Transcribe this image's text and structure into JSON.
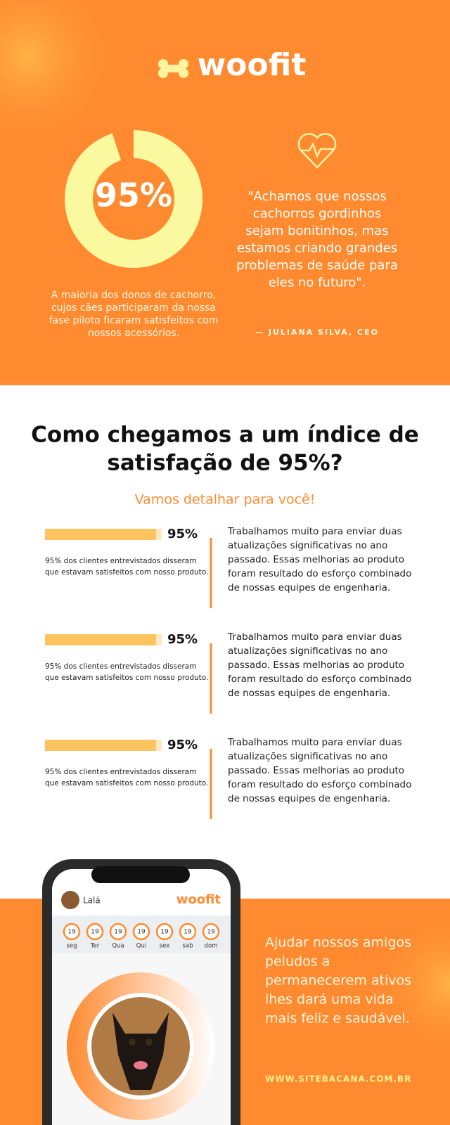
{
  "header": {
    "logo": "woofit"
  },
  "stat": {
    "value": 95,
    "label": "95%",
    "caption": [
      "A maioria dos donos de cachorro,",
      "cujos cães participaram da nossa",
      "fase piloto ficaram satisfeitos com",
      "nossos acessórios."
    ]
  },
  "quote": {
    "lines": [
      "\"Achamos que nossos",
      "cachorros gordinhos",
      "sejam bonitinhos, mas",
      "estamos criando grandes",
      "problemas de saúde para",
      "eles no futuro\"."
    ],
    "author": "— JULIANA SILVA, CEO"
  },
  "section": {
    "title": [
      "Como chegamos a um índice de",
      "satisfação de 95%?"
    ],
    "subtitle": "Vamos detalhar para você!"
  },
  "items": [
    {
      "value": 95,
      "label": "95%",
      "note": [
        "95% dos clientes entrevistados disseram",
        "que estavam satisfeitos com nosso produto."
      ],
      "text": [
        "Trabalhamos muito para enviar duas",
        "atualizações significativas no ano",
        "passado. Essas melhorias ao produto",
        "foram resultado do esforço combinado",
        "de nossas equipes de engenharia."
      ]
    },
    {
      "value": 95,
      "label": "95%",
      "note": [
        "95% dos clientes entrevistados disseram",
        "que estavam satisfeitos com nosso produto."
      ],
      "text": [
        "Trabalhamos muito para enviar duas",
        "atualizações significativas no ano",
        "passado. Essas melhorias ao produto",
        "foram resultado do esforço combinado",
        "de nossas equipes de engenharia."
      ]
    },
    {
      "value": 95,
      "label": "95%",
      "note": [
        "95% dos clientes entrevistados disseram",
        "que estavam satisfeitos com nosso produto."
      ],
      "text": [
        "Trabalhamos muito para enviar duas",
        "atualizações significativas no ano",
        "passado. Essas melhorias ao produto",
        "foram resultado do esforço combinado",
        "de nossas equipes de engenharia."
      ]
    }
  ],
  "app": {
    "user": "Lalá",
    "logo": "woofit",
    "days": [
      {
        "date": "19",
        "name": "seg"
      },
      {
        "date": "19",
        "name": "Ter"
      },
      {
        "date": "19",
        "name": "Qua"
      },
      {
        "date": "19",
        "name": "Qui"
      },
      {
        "date": "19",
        "name": "sex"
      },
      {
        "date": "19",
        "name": "sab"
      },
      {
        "date": "19",
        "name": "dom"
      }
    ]
  },
  "footer": {
    "lines": [
      "Ajudar nossos amigos",
      "peludos a",
      "permanecerem ativos",
      "lhes dará uma vida",
      "mais feliz e saudável."
    ],
    "url": "WWW.SITEBACANA.COM.BR"
  }
}
